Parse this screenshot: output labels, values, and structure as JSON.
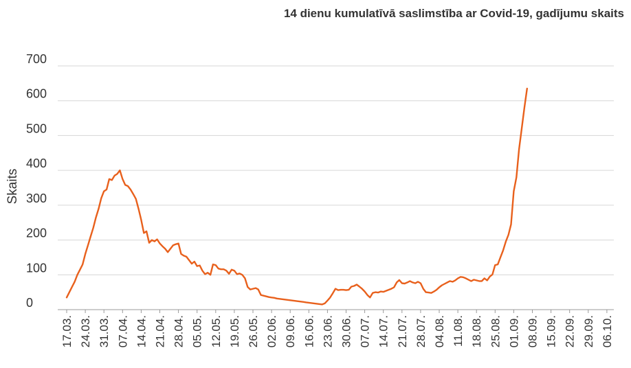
{
  "chart_data": {
    "type": "line",
    "title": "14 dienu kumulatīvā saslimstība ar Covid-19, gadījumu skaits",
    "xlabel": "",
    "ylabel": "Skaits",
    "ylim": [
      0,
      700
    ],
    "yticks": [
      0,
      100,
      200,
      300,
      400,
      500,
      600,
      700
    ],
    "grid": true,
    "line_color": "#e8601c",
    "categories": [
      "17.03.",
      "24.03.",
      "31.03.",
      "07.04.",
      "14.04.",
      "21.04.",
      "28.04.",
      "05.05.",
      "12.05.",
      "19.05.",
      "26.05.",
      "02.06.",
      "09.06.",
      "16.06.",
      "23.06.",
      "30.06.",
      "07.07.",
      "14.07.",
      "21.07.",
      "28.07.",
      "04.08.",
      "11.08.",
      "18.08.",
      "25.08.",
      "01.09.",
      "08.09.",
      "15.09.",
      "22.09.",
      "29.09.",
      "06.10."
    ],
    "series": [
      {
        "values": [
          [
            0,
            35
          ],
          [
            1,
            50
          ],
          [
            2,
            65
          ],
          [
            3,
            80
          ],
          [
            4,
            100
          ],
          [
            5,
            115
          ],
          [
            6,
            130
          ],
          [
            7,
            160
          ],
          [
            8,
            185
          ],
          [
            9,
            210
          ],
          [
            10,
            235
          ],
          [
            11,
            265
          ],
          [
            12,
            290
          ],
          [
            13,
            320
          ],
          [
            14,
            340
          ],
          [
            15,
            345
          ],
          [
            16,
            375
          ],
          [
            17,
            372
          ],
          [
            18,
            385
          ],
          [
            19,
            390
          ],
          [
            20,
            400
          ],
          [
            21,
            375
          ],
          [
            22,
            358
          ],
          [
            23,
            355
          ],
          [
            24,
            345
          ],
          [
            25,
            332
          ],
          [
            26,
            318
          ],
          [
            27,
            290
          ],
          [
            28,
            258
          ],
          [
            29,
            220
          ],
          [
            30,
            225
          ],
          [
            31,
            192
          ],
          [
            32,
            200
          ],
          [
            33,
            196
          ],
          [
            34,
            202
          ],
          [
            35,
            190
          ],
          [
            36,
            182
          ],
          [
            37,
            175
          ],
          [
            38,
            165
          ],
          [
            39,
            175
          ],
          [
            40,
            185
          ],
          [
            41,
            188
          ],
          [
            42,
            190
          ],
          [
            43,
            160
          ],
          [
            44,
            155
          ],
          [
            45,
            152
          ],
          [
            46,
            142
          ],
          [
            47,
            132
          ],
          [
            48,
            138
          ],
          [
            49,
            125
          ],
          [
            50,
            127
          ],
          [
            51,
            112
          ],
          [
            52,
            102
          ],
          [
            53,
            106
          ],
          [
            54,
            100
          ],
          [
            55,
            130
          ],
          [
            56,
            128
          ],
          [
            57,
            118
          ],
          [
            58,
            116
          ],
          [
            59,
            116
          ],
          [
            60,
            112
          ],
          [
            61,
            103
          ],
          [
            62,
            115
          ],
          [
            63,
            112
          ],
          [
            64,
            102
          ],
          [
            65,
            104
          ],
          [
            66,
            100
          ],
          [
            67,
            90
          ],
          [
            68,
            65
          ],
          [
            69,
            58
          ],
          [
            70,
            60
          ],
          [
            71,
            62
          ],
          [
            72,
            58
          ],
          [
            73,
            42
          ],
          [
            74,
            40
          ],
          [
            75,
            38
          ],
          [
            76,
            36
          ],
          [
            77,
            35
          ],
          [
            78,
            34
          ],
          [
            79,
            32
          ],
          [
            80,
            31
          ],
          [
            81,
            30
          ],
          [
            82,
            29
          ],
          [
            83,
            28
          ],
          [
            84,
            27
          ],
          [
            85,
            26
          ],
          [
            86,
            25
          ],
          [
            87,
            24
          ],
          [
            88,
            23
          ],
          [
            89,
            22
          ],
          [
            90,
            21
          ],
          [
            91,
            20
          ],
          [
            92,
            19
          ],
          [
            93,
            18
          ],
          [
            94,
            17
          ],
          [
            95,
            16
          ],
          [
            96,
            15
          ],
          [
            97,
            18
          ],
          [
            98,
            26
          ],
          [
            99,
            35
          ],
          [
            100,
            47
          ],
          [
            101,
            60
          ],
          [
            102,
            56
          ],
          [
            103,
            57
          ],
          [
            104,
            57
          ],
          [
            105,
            56
          ],
          [
            106,
            57
          ],
          [
            107,
            66
          ],
          [
            108,
            68
          ],
          [
            109,
            72
          ],
          [
            110,
            66
          ],
          [
            111,
            60
          ],
          [
            112,
            52
          ],
          [
            113,
            42
          ],
          [
            114,
            35
          ],
          [
            115,
            48
          ],
          [
            116,
            50
          ],
          [
            117,
            49
          ],
          [
            118,
            52
          ],
          [
            119,
            51
          ],
          [
            120,
            54
          ],
          [
            121,
            57
          ],
          [
            122,
            60
          ],
          [
            123,
            64
          ],
          [
            124,
            78
          ],
          [
            125,
            85
          ],
          [
            126,
            76
          ],
          [
            127,
            75
          ],
          [
            128,
            78
          ],
          [
            129,
            82
          ],
          [
            130,
            78
          ],
          [
            131,
            76
          ],
          [
            132,
            80
          ],
          [
            133,
            76
          ],
          [
            134,
            60
          ],
          [
            135,
            50
          ],
          [
            136,
            49
          ],
          [
            137,
            48
          ],
          [
            138,
            52
          ],
          [
            139,
            57
          ],
          [
            140,
            64
          ],
          [
            141,
            70
          ],
          [
            142,
            74
          ],
          [
            143,
            78
          ],
          [
            144,
            82
          ],
          [
            145,
            80
          ],
          [
            146,
            84
          ],
          [
            147,
            90
          ],
          [
            148,
            94
          ],
          [
            149,
            93
          ],
          [
            150,
            90
          ],
          [
            151,
            86
          ],
          [
            152,
            82
          ],
          [
            153,
            86
          ],
          [
            154,
            84
          ],
          [
            155,
            82
          ],
          [
            156,
            82
          ],
          [
            157,
            90
          ],
          [
            158,
            84
          ],
          [
            159,
            95
          ],
          [
            160,
            101
          ],
          [
            161,
            128
          ],
          [
            162,
            130
          ],
          [
            163,
            150
          ],
          [
            164,
            170
          ],
          [
            165,
            195
          ],
          [
            166,
            215
          ],
          [
            167,
            245
          ],
          [
            168,
            340
          ],
          [
            169,
            380
          ],
          [
            170,
            460
          ],
          [
            171,
            520
          ],
          [
            172,
            580
          ],
          [
            173,
            635
          ]
        ]
      }
    ]
  }
}
